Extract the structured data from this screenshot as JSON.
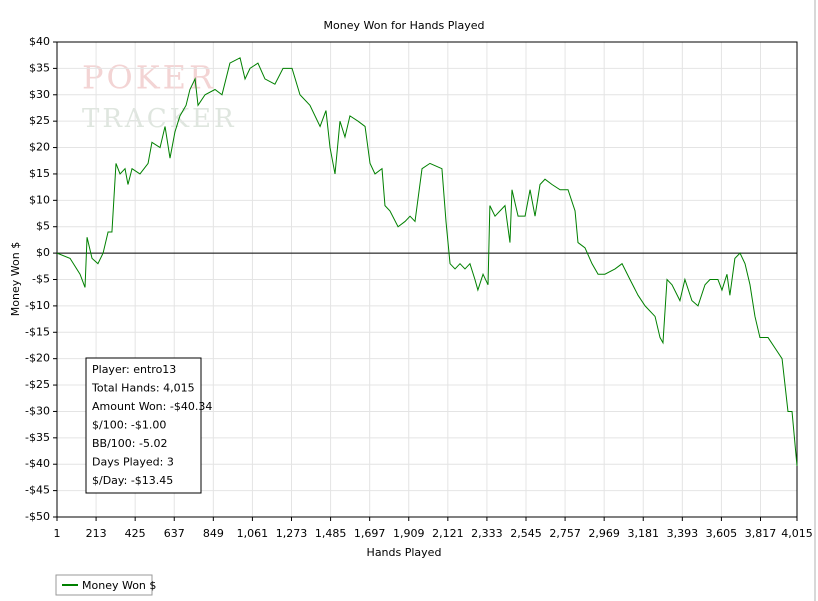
{
  "chart_data": {
    "type": "line",
    "title": "Money Won for Hands Played",
    "xlabel": "Hands Played",
    "ylabel": "Money Won $",
    "watermark": [
      "POKER",
      "TRACKER"
    ],
    "annotations": [
      "Player: entro13",
      "Total Hands: 4,015",
      "Amount Won: -$40.34",
      "$/100: -$1.00",
      "BB/100: -5.02",
      "Days Played: 3",
      "$/Day: -$13.45"
    ],
    "xlim": [
      1,
      4015
    ],
    "ylim": [
      -50,
      40
    ],
    "xticks": [
      1,
      213,
      425,
      637,
      849,
      {
        "value": 1061,
        "label": "1,061"
      },
      {
        "value": 1273,
        "label": "1,273"
      },
      {
        "value": 1485,
        "label": "1,485"
      },
      {
        "value": 1697,
        "label": "1,697"
      },
      {
        "value": 1909,
        "label": "1,909"
      },
      {
        "value": 2121,
        "label": "2,121"
      },
      {
        "value": 2333,
        "label": "2,333"
      },
      {
        "value": 2545,
        "label": "2,545"
      },
      {
        "value": 2757,
        "label": "2,757"
      },
      {
        "value": 2969,
        "label": "2,969"
      },
      {
        "value": 3181,
        "label": "3,181"
      },
      {
        "value": 3393,
        "label": "3,393"
      },
      {
        "value": 3605,
        "label": "3,605"
      },
      {
        "value": 3817,
        "label": "3,817"
      },
      {
        "value": 4015,
        "label": "4,015"
      }
    ],
    "yticks": [
      {
        "value": 40,
        "label": "$40"
      },
      {
        "value": 35,
        "label": "$35"
      },
      {
        "value": 30,
        "label": "$30"
      },
      {
        "value": 25,
        "label": "$25"
      },
      {
        "value": 20,
        "label": "$20"
      },
      {
        "value": 15,
        "label": "$15"
      },
      {
        "value": 10,
        "label": "$10"
      },
      {
        "value": 5,
        "label": "$5"
      },
      {
        "value": 0,
        "label": "$0"
      },
      {
        "value": -5,
        "label": "-$5"
      },
      {
        "value": -10,
        "label": "-$10"
      },
      {
        "value": -15,
        "label": "-$15"
      },
      {
        "value": -20,
        "label": "-$20"
      },
      {
        "value": -25,
        "label": "-$25"
      },
      {
        "value": -30,
        "label": "-$30"
      },
      {
        "value": -35,
        "label": "-$35"
      },
      {
        "value": -40,
        "label": "-$40"
      },
      {
        "value": -45,
        "label": "-$45"
      },
      {
        "value": -50,
        "label": "-$50"
      }
    ],
    "grid": true,
    "legend": "bottom-left",
    "x": [
      1,
      72,
      126,
      153,
      164,
      191,
      223,
      251,
      278,
      299,
      321,
      343,
      370,
      386,
      408,
      451,
      495,
      516,
      560,
      587,
      614,
      641,
      668,
      701,
      722,
      750,
      766,
      804,
      858,
      896,
      939,
      994,
      1021,
      1048,
      1091,
      1129,
      1183,
      1227,
      1276,
      1319,
      1373,
      1428,
      1460,
      1482,
      1509,
      1536,
      1563,
      1590,
      1634,
      1672,
      1699,
      1726,
      1764,
      1780,
      1807,
      1851,
      1889,
      1916,
      1943,
      1981,
      2024,
      2089,
      2111,
      2133,
      2160,
      2187,
      2214,
      2241,
      2268,
      2284,
      2312,
      2339,
      2349,
      2377,
      2404,
      2431,
      2458,
      2469,
      2502,
      2540,
      2567,
      2594,
      2621,
      2648,
      2686,
      2730,
      2773,
      2811,
      2827,
      2865,
      2903,
      2936,
      2973,
      3028,
      3066,
      3109,
      3153,
      3191,
      3245,
      3272,
      3288,
      3310,
      3337,
      3380,
      3407,
      3445,
      3478,
      3516,
      3543,
      3586,
      3608,
      3635,
      3651,
      3678,
      3706,
      3733,
      3760,
      3787,
      3814,
      3858,
      3896,
      3934,
      3966,
      3988,
      4015
    ],
    "series": [
      {
        "name": "Money Won $",
        "color": "#008000",
        "values": [
          0,
          -1,
          -4,
          -6.5,
          3,
          -1,
          -2,
          0,
          4,
          4,
          17,
          15,
          16,
          13,
          16,
          15,
          17,
          21,
          20,
          24,
          18,
          23,
          26,
          28,
          31,
          33,
          28,
          30,
          31,
          30,
          36,
          37,
          33,
          35,
          36,
          33,
          32,
          35,
          35,
          30,
          28,
          24,
          27,
          20,
          15,
          25,
          22,
          26,
          25,
          24,
          17,
          15,
          16,
          9,
          8,
          5,
          6,
          7,
          6,
          16,
          17,
          16,
          6,
          -2,
          -3,
          -2,
          -3,
          -2,
          -5,
          -7,
          -4,
          -6,
          9,
          7,
          8,
          9,
          2,
          12,
          7,
          7,
          12,
          7,
          13,
          14,
          13,
          12,
          12,
          8,
          2,
          1,
          -2,
          -4,
          -4,
          -3,
          -2,
          -5,
          -8,
          -10,
          -12,
          -16,
          -17,
          -5,
          -6,
          -9,
          -5,
          -9,
          -10,
          -6,
          -5,
          -5,
          -7,
          -4,
          -8,
          -1,
          0,
          -2,
          -6,
          -12,
          -16,
          -16,
          -18,
          -20,
          -30,
          -30,
          -40.34
        ]
      }
    ]
  }
}
